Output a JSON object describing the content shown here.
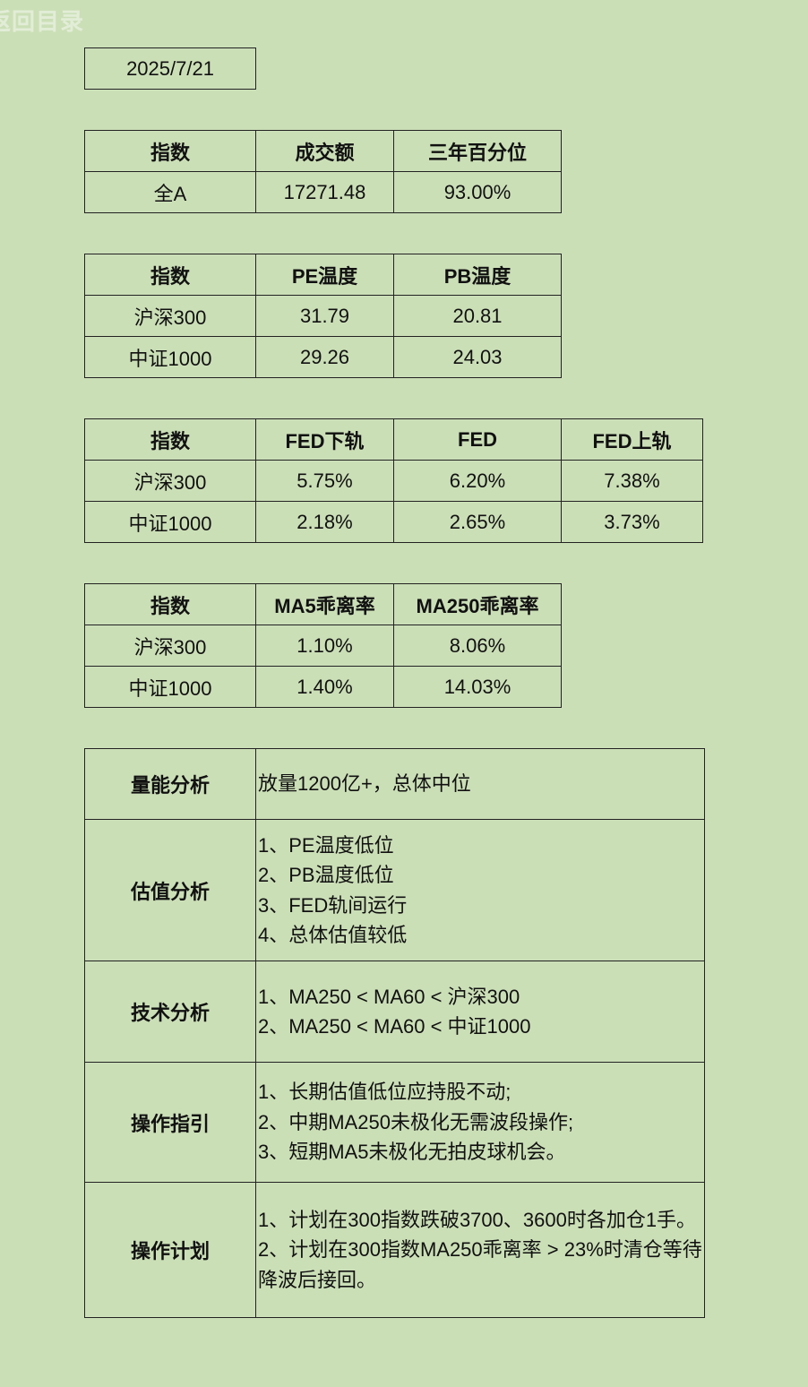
{
  "back_link": "返回目录",
  "date": "2025/7/21",
  "turnover_table": {
    "headers": [
      "指数",
      "成交额",
      "三年百分位"
    ],
    "rows": [
      [
        "全A",
        "17271.48",
        "93.00%"
      ]
    ]
  },
  "temperature_table": {
    "headers": [
      "指数",
      "PE温度",
      "PB温度"
    ],
    "rows": [
      [
        "沪深300",
        "31.79",
        "20.81"
      ],
      [
        "中证1000",
        "29.26",
        "24.03"
      ]
    ]
  },
  "fed_table": {
    "headers": [
      "指数",
      "FED下轨",
      "FED",
      "FED上轨"
    ],
    "rows": [
      [
        "沪深300",
        "5.75%",
        "6.20%",
        "7.38%"
      ],
      [
        "中证1000",
        "2.18%",
        "2.65%",
        "3.73%"
      ]
    ]
  },
  "ma_table": {
    "headers": [
      "指数",
      "MA5乖离率",
      "MA250乖离率"
    ],
    "rows": [
      [
        "沪深300",
        "1.10%",
        "8.06%"
      ],
      [
        "中证1000",
        "1.40%",
        "14.03%"
      ]
    ]
  },
  "analysis": [
    {
      "label": "量能分析",
      "lines": [
        "放量1200亿+，总体中位"
      ]
    },
    {
      "label": "估值分析",
      "lines": [
        "1、PE温度低位",
        "2、PB温度低位",
        "3、FED轨间运行",
        "4、总体估值较低"
      ]
    },
    {
      "label": "技术分析",
      "lines": [
        "1、MA250 < MA60 < 沪深300",
        "2、MA250 < MA60 < 中证1000"
      ]
    },
    {
      "label": "操作指引",
      "lines": [
        "1、长期估值低位应持股不动;",
        "2、中期MA250未极化无需波段操作;",
        "3、短期MA5未极化无拍皮球机会。"
      ]
    },
    {
      "label": "操作计划",
      "lines": [
        "1、计划在300指数跌破3700、3600时各加仓1手。",
        "2、计划在300指数MA250乖离率 > 23%时清仓等待降波后接回。"
      ]
    }
  ]
}
